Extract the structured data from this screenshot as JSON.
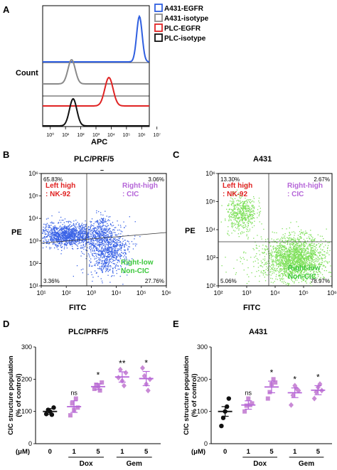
{
  "panels": {
    "A": {
      "letter": "A",
      "ylabel": "Count",
      "xlabel": "APC",
      "legend": [
        {
          "label": "A431-EGFR",
          "color": "#2f5fe0"
        },
        {
          "label": "A431-isotype",
          "color": "#8a8a8a"
        },
        {
          "label": "PLC-EGFR",
          "color": "#e02424"
        },
        {
          "label": "PLC-isotype",
          "color": "#111111"
        }
      ],
      "xticks": [
        "10⁰",
        "10¹",
        "10²",
        "10³",
        "10⁴",
        "10⁵",
        "10⁶",
        "10⁷"
      ]
    },
    "B": {
      "letter": "B",
      "title": "PLC/PRF/5",
      "ylabel": "PE",
      "xlabel": "FITC",
      "quadrants": {
        "ul": "65.83%",
        "ur": "3.06%",
        "ll": "3.36%",
        "lr": "27.76%"
      },
      "labels": {
        "left_high": "Left high\n: NK-92",
        "right_high": "Right-high\n: CIC",
        "right_low": "Right-low\nNon-CIC"
      },
      "yticks": [
        "10⁶",
        "10⁵",
        "10⁴",
        "10³",
        "10²",
        "10¹"
      ],
      "xticks": [
        "10¹",
        "10²",
        "10³",
        "10⁴",
        "10⁵",
        "10⁶"
      ],
      "dot_color": "#3a63e6"
    },
    "C": {
      "letter": "C",
      "title": "A431",
      "ylabel": "PE",
      "xlabel": "FITC",
      "quadrants": {
        "ul": "13.30%",
        "ur": "2.67%",
        "ll": "5.06%",
        "lr": "78.97%"
      },
      "labels": {
        "left_high": "Left high\n: NK-92",
        "right_high": "Right-high\n: CIC",
        "right_low": "Right-low\nNon-CIC"
      },
      "yticks": [
        "10⁶",
        "10⁵",
        "10⁴",
        "10³",
        "10²"
      ],
      "xticks": [
        "10²",
        "10³",
        "10⁴",
        "10⁵",
        "10⁶"
      ],
      "dot_color": "#7ee05a"
    },
    "D": {
      "letter": "D",
      "title": "PLC/PRF/5",
      "ylabel": "CIC structure population\n(% of control)",
      "unit": "(μM)",
      "yticks": [
        "0",
        "100",
        "200",
        "300"
      ],
      "dose_labels": [
        "0",
        "1",
        "5",
        "1",
        "5"
      ],
      "groups": [
        "Dox",
        "Gem"
      ],
      "sig": [
        "",
        "ns",
        "*",
        "**",
        "*"
      ]
    },
    "E": {
      "letter": "E",
      "title": "A431",
      "ylabel": "CIC structure population\n(% of control)",
      "unit": "(μM)",
      "yticks": [
        "0",
        "100",
        "200",
        "300"
      ],
      "dose_labels": [
        "0",
        "1",
        "5",
        "1",
        "5"
      ],
      "groups": [
        "Dox",
        "Gem"
      ],
      "sig": [
        "",
        "ns",
        "*",
        "*",
        "*"
      ]
    }
  },
  "chart_data": [
    {
      "type": "scatter",
      "panel": "D",
      "title": "PLC/PRF/5",
      "categories": [
        "0",
        "1",
        "5",
        "1",
        "5"
      ],
      "means": [
        100,
        115,
        177,
        207,
        202
      ],
      "sem": [
        9,
        18,
        9,
        16,
        22
      ],
      "points": [
        [
          92,
          105,
          100,
          90,
          112
        ],
        [
          88,
          125,
          105,
          140,
          112
        ],
        [
          170,
          183,
          178,
          165,
          190
        ],
        [
          205,
          230,
          195,
          180,
          220
        ],
        [
          235,
          210,
          185,
          165,
          200
        ]
      ],
      "ylim": [
        0,
        300
      ]
    },
    {
      "type": "scatter",
      "panel": "E",
      "title": "A431",
      "categories": [
        "0",
        "1",
        "5",
        "1",
        "5"
      ],
      "means": [
        100,
        120,
        176,
        158,
        166
      ],
      "sem": [
        15,
        13,
        18,
        15,
        14
      ],
      "points": [
        [
          55,
          80,
          100,
          115,
          140
        ],
        [
          100,
          118,
          140,
          120,
          125
        ],
        [
          140,
          160,
          185,
          200,
          190
        ],
        [
          120,
          150,
          180,
          170,
          165
        ],
        [
          140,
          160,
          175,
          185,
          165
        ]
      ],
      "ylim": [
        0,
        300
      ]
    }
  ]
}
